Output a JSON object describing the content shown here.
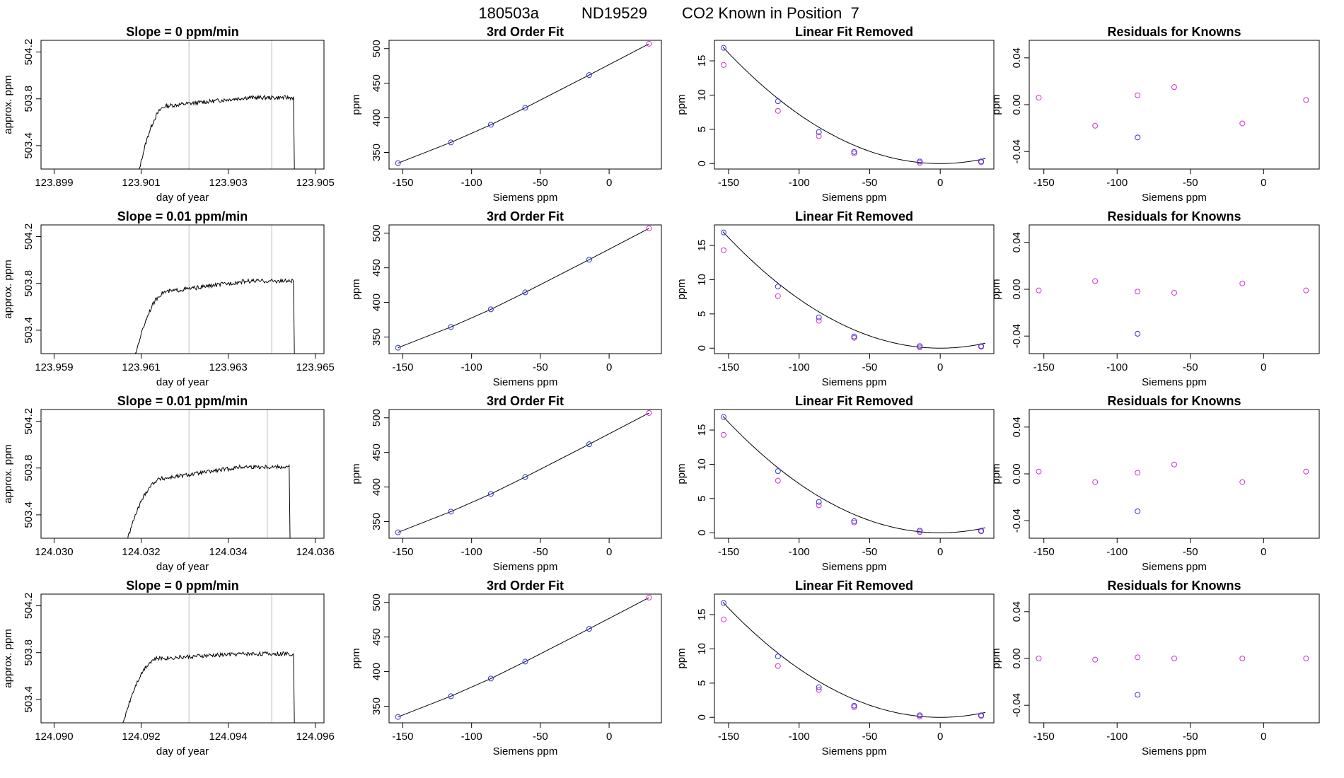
{
  "figure": {
    "run_id": "180503a",
    "tank_id": "ND19529",
    "description": "CO2 Known in Position  7"
  },
  "colors": {
    "trace": "#000000",
    "cursor_lines": "#c8c8c8",
    "fit_line": "#000000",
    "points_a": "#3333dd",
    "points_b": "#cc33cc"
  },
  "chart_data": [
    {
      "type": "line",
      "row": 1,
      "panel": "trace",
      "title": "Slope =  0  ppm/min",
      "xlabel": "day of year",
      "ylabel": "approx. ppm",
      "xlim": [
        123.8987,
        123.9052
      ],
      "ylim": [
        503.2,
        504.3
      ],
      "xticks": [
        "123.899",
        "123.901",
        "123.903",
        "123.905"
      ],
      "xtick_values": [
        123.899,
        123.901,
        123.903,
        123.905
      ],
      "yticks": [
        "503.4",
        "503.8",
        "504.2"
      ],
      "ytick_values": [
        503.4,
        503.8,
        504.2
      ],
      "vlines": [
        123.9021,
        123.904
      ],
      "trace": {
        "start": 123.90085,
        "rise_end": 123.9016,
        "end": 123.9045,
        "plateau": 503.77,
        "plateau_end": 503.81
      },
      "grid": false
    },
    {
      "type": "line",
      "row": 1,
      "panel": "fit",
      "title": "3rd Order Fit",
      "xlabel": "Siemens ppm",
      "ylabel": "ppm",
      "xlim": [
        -160,
        38
      ],
      "ylim": [
        326,
        512
      ],
      "xticks": [
        "-150",
        "-100",
        "-50",
        "0"
      ],
      "xtick_values": [
        -150,
        -100,
        -50,
        0
      ],
      "yticks": [
        "350",
        "400",
        "450",
        "500"
      ],
      "ytick_values": [
        350,
        400,
        450,
        500
      ],
      "x": [
        -153.5,
        -115,
        -86,
        -61,
        -14.5,
        29
      ],
      "y": [
        334.5,
        364.5,
        390,
        414.5,
        461.8,
        507
      ],
      "grid": false
    },
    {
      "type": "scatter",
      "row": 1,
      "panel": "linear-removed",
      "title": "Linear Fit Removed",
      "xlabel": "Siemens ppm",
      "ylabel": "ppm",
      "xlim": [
        -160,
        38
      ],
      "ylim": [
        -0.8,
        18
      ],
      "xticks": [
        "-150",
        "-100",
        "-50",
        "0"
      ],
      "xtick_values": [
        -150,
        -100,
        -50,
        0
      ],
      "yticks": [
        "0",
        "5",
        "10",
        "15"
      ],
      "ytick_values": [
        0,
        5,
        10,
        15
      ],
      "x": [
        -153.5,
        -115,
        -86,
        -61,
        -14.5,
        29
      ],
      "y_fit_points": [
        16.9,
        9.1,
        4.6,
        1.7,
        0.3,
        0.3
      ],
      "y_alt_points": [
        14.4,
        7.7,
        4.0,
        1.5,
        0.1,
        0.2
      ],
      "grid": false
    },
    {
      "type": "scatter",
      "row": 1,
      "panel": "residuals",
      "title": "Residuals for Knowns",
      "xlabel": "Siemens ppm",
      "ylabel": "ppm",
      "xlim": [
        -160,
        38
      ],
      "ylim": [
        -0.055,
        0.055
      ],
      "xticks": [
        "-150",
        "-100",
        "-50",
        "0"
      ],
      "xtick_values": [
        -150,
        -100,
        -50,
        0
      ],
      "yticks": [
        "-0.04",
        "0.00",
        "0.04"
      ],
      "ytick_values": [
        -0.04,
        0.0,
        0.04
      ],
      "x": [
        -153.5,
        -115,
        -86,
        -61,
        -14.5,
        29
      ],
      "y": [
        0.006,
        -0.018,
        0.008,
        0.015,
        -0.016,
        0.004
      ],
      "outlier": {
        "x": -86,
        "y": -0.028
      },
      "grid": false
    },
    {
      "type": "line",
      "row": 2,
      "panel": "trace",
      "title": "Slope =  0.01  ppm/min",
      "xlabel": "day of year",
      "ylabel": "approx. ppm",
      "xlim": [
        123.9587,
        123.9652
      ],
      "ylim": [
        503.2,
        504.3
      ],
      "xticks": [
        "123.959",
        "123.961",
        "123.963",
        "123.965"
      ],
      "xtick_values": [
        123.959,
        123.961,
        123.963,
        123.965
      ],
      "yticks": [
        "503.4",
        "503.8",
        "504.2"
      ],
      "ytick_values": [
        503.4,
        503.8,
        504.2
      ],
      "vlines": [
        123.9621,
        123.964
      ],
      "trace": {
        "start": 123.96075,
        "rise_end": 123.9616,
        "end": 123.9645,
        "plateau": 503.76,
        "plateau_end": 503.82
      },
      "grid": false
    },
    {
      "type": "line",
      "row": 2,
      "panel": "fit",
      "title": "3rd Order Fit",
      "xlabel": "Siemens ppm",
      "ylabel": "ppm",
      "xlim": [
        -160,
        38
      ],
      "ylim": [
        326,
        512
      ],
      "xticks": [
        "-150",
        "-100",
        "-50",
        "0"
      ],
      "xtick_values": [
        -150,
        -100,
        -50,
        0
      ],
      "yticks": [
        "350",
        "400",
        "450",
        "500"
      ],
      "ytick_values": [
        350,
        400,
        450,
        500
      ],
      "x": [
        -153.5,
        -115,
        -86,
        -61,
        -14.5,
        29
      ],
      "y": [
        334.5,
        364.5,
        390,
        414.5,
        461.8,
        507
      ],
      "grid": false
    },
    {
      "type": "scatter",
      "row": 2,
      "panel": "linear-removed",
      "title": "Linear Fit Removed",
      "xlabel": "Siemens ppm",
      "ylabel": "ppm",
      "xlim": [
        -160,
        38
      ],
      "ylim": [
        -0.8,
        18
      ],
      "xticks": [
        "-150",
        "-100",
        "-50",
        "0"
      ],
      "xtick_values": [
        -150,
        -100,
        -50,
        0
      ],
      "yticks": [
        "0",
        "5",
        "10",
        "15"
      ],
      "ytick_values": [
        0,
        5,
        10,
        15
      ],
      "x": [
        -153.5,
        -115,
        -86,
        -61,
        -14.5,
        29
      ],
      "y_fit_points": [
        16.9,
        9.0,
        4.5,
        1.7,
        0.3,
        0.3
      ],
      "y_alt_points": [
        14.3,
        7.6,
        4.0,
        1.5,
        0.1,
        0.2
      ],
      "grid": false
    },
    {
      "type": "scatter",
      "row": 2,
      "panel": "residuals",
      "title": "Residuals for Knowns",
      "xlabel": "Siemens ppm",
      "ylabel": "ppm",
      "xlim": [
        -160,
        38
      ],
      "ylim": [
        -0.055,
        0.055
      ],
      "xticks": [
        "-150",
        "-100",
        "-50",
        "0"
      ],
      "xtick_values": [
        -150,
        -100,
        -50,
        0
      ],
      "yticks": [
        "-0.04",
        "0.00",
        "0.04"
      ],
      "ytick_values": [
        -0.04,
        0.0,
        0.04
      ],
      "x": [
        -153.5,
        -115,
        -86,
        -61,
        -14.5,
        29
      ],
      "y": [
        -0.001,
        0.007,
        -0.002,
        -0.003,
        0.005,
        -0.001
      ],
      "outlier": {
        "x": -86,
        "y": -0.038
      },
      "grid": false
    },
    {
      "type": "line",
      "row": 3,
      "panel": "trace",
      "title": "Slope =  0.01  ppm/min",
      "xlabel": "day of year",
      "ylabel": "approx. ppm",
      "xlim": [
        124.0297,
        124.0362
      ],
      "ylim": [
        503.2,
        504.3
      ],
      "xticks": [
        "124.030",
        "124.032",
        "124.034",
        "124.036"
      ],
      "xtick_values": [
        124.03,
        124.032,
        124.034,
        124.036
      ],
      "yticks": [
        "503.4",
        "503.8",
        "504.2"
      ],
      "ytick_values": [
        503.4,
        503.8,
        504.2
      ],
      "vlines": [
        124.0331,
        124.0349
      ],
      "trace": {
        "start": 124.03155,
        "rise_end": 124.0325,
        "end": 124.0354,
        "plateau": 503.74,
        "plateau_end": 503.81
      },
      "grid": false
    },
    {
      "type": "line",
      "row": 3,
      "panel": "fit",
      "title": "3rd Order Fit",
      "xlabel": "Siemens ppm",
      "ylabel": "ppm",
      "xlim": [
        -160,
        38
      ],
      "ylim": [
        326,
        512
      ],
      "xticks": [
        "-150",
        "-100",
        "-50",
        "0"
      ],
      "xtick_values": [
        -150,
        -100,
        -50,
        0
      ],
      "yticks": [
        "350",
        "400",
        "450",
        "500"
      ],
      "ytick_values": [
        350,
        400,
        450,
        500
      ],
      "x": [
        -153.5,
        -115,
        -86,
        -61,
        -14.5,
        29
      ],
      "y": [
        334.5,
        364.5,
        390,
        414.5,
        461.8,
        507
      ],
      "grid": false
    },
    {
      "type": "scatter",
      "row": 3,
      "panel": "linear-removed",
      "title": "Linear Fit Removed",
      "xlabel": "Siemens ppm",
      "ylabel": "ppm",
      "xlim": [
        -160,
        38
      ],
      "ylim": [
        -0.8,
        18
      ],
      "xticks": [
        "-150",
        "-100",
        "-50",
        "0"
      ],
      "xtick_values": [
        -150,
        -100,
        -50,
        0
      ],
      "yticks": [
        "0",
        "5",
        "10",
        "15"
      ],
      "ytick_values": [
        0,
        5,
        10,
        15
      ],
      "x": [
        -153.5,
        -115,
        -86,
        -61,
        -14.5,
        29
      ],
      "y_fit_points": [
        16.9,
        9.0,
        4.5,
        1.7,
        0.3,
        0.3
      ],
      "y_alt_points": [
        14.3,
        7.6,
        4.0,
        1.5,
        0.1,
        0.2
      ],
      "grid": false
    },
    {
      "type": "scatter",
      "row": 3,
      "panel": "residuals",
      "title": "Residuals for Knowns",
      "xlabel": "Siemens ppm",
      "ylabel": "ppm",
      "xlim": [
        -160,
        38
      ],
      "ylim": [
        -0.055,
        0.055
      ],
      "xticks": [
        "-150",
        "-100",
        "-50",
        "0"
      ],
      "xtick_values": [
        -150,
        -100,
        -50,
        0
      ],
      "yticks": [
        "-0.04",
        "0.00",
        "0.04"
      ],
      "ytick_values": [
        -0.04,
        0.0,
        0.04
      ],
      "x": [
        -153.5,
        -115,
        -86,
        -61,
        -14.5,
        29
      ],
      "y": [
        0.002,
        -0.007,
        0.001,
        0.008,
        -0.007,
        0.002
      ],
      "outlier": {
        "x": -86,
        "y": -0.032
      },
      "grid": false
    },
    {
      "type": "line",
      "row": 4,
      "panel": "trace",
      "title": "Slope =  0  ppm/min",
      "xlabel": "day of year",
      "ylabel": "approx. ppm",
      "xlim": [
        124.0897,
        124.0962
      ],
      "ylim": [
        503.2,
        504.3
      ],
      "xticks": [
        "124.090",
        "124.092",
        "124.094",
        "124.096"
      ],
      "xtick_values": [
        124.09,
        124.092,
        124.094,
        124.096
      ],
      "yticks": [
        "503.4",
        "503.8",
        "504.2"
      ],
      "ytick_values": [
        503.4,
        503.8,
        504.2
      ],
      "vlines": [
        124.0931,
        124.095
      ],
      "trace": {
        "start": 124.09145,
        "rise_end": 124.0924,
        "end": 124.0955,
        "plateau": 503.78,
        "plateau_end": 503.79
      },
      "grid": false
    },
    {
      "type": "line",
      "row": 4,
      "panel": "fit",
      "title": "3rd Order Fit",
      "xlabel": "Siemens ppm",
      "ylabel": "ppm",
      "xlim": [
        -160,
        38
      ],
      "ylim": [
        326,
        512
      ],
      "xticks": [
        "-150",
        "-100",
        "-50",
        "0"
      ],
      "xtick_values": [
        -150,
        -100,
        -50,
        0
      ],
      "yticks": [
        "350",
        "400",
        "450",
        "500"
      ],
      "ytick_values": [
        350,
        400,
        450,
        500
      ],
      "x": [
        -153.5,
        -115,
        -86,
        -61,
        -14.5,
        29
      ],
      "y": [
        334.5,
        364.5,
        390,
        414.5,
        461.8,
        507
      ],
      "grid": false
    },
    {
      "type": "scatter",
      "row": 4,
      "panel": "linear-removed",
      "title": "Linear Fit Removed",
      "xlabel": "Siemens ppm",
      "ylabel": "ppm",
      "xlim": [
        -160,
        38
      ],
      "ylim": [
        -0.8,
        18
      ],
      "xticks": [
        "-150",
        "-100",
        "-50",
        "0"
      ],
      "xtick_values": [
        -150,
        -100,
        -50,
        0
      ],
      "yticks": [
        "0",
        "5",
        "10",
        "15"
      ],
      "ytick_values": [
        0,
        5,
        10,
        15
      ],
      "x": [
        -153.5,
        -115,
        -86,
        -61,
        -14.5,
        29
      ],
      "y_fit_points": [
        16.7,
        8.9,
        4.4,
        1.7,
        0.3,
        0.3
      ],
      "y_alt_points": [
        14.3,
        7.5,
        4.0,
        1.5,
        0.1,
        0.2
      ],
      "grid": false
    },
    {
      "type": "scatter",
      "row": 4,
      "panel": "residuals",
      "title": "Residuals for Knowns",
      "xlabel": "Siemens ppm",
      "ylabel": "ppm",
      "xlim": [
        -160,
        38
      ],
      "ylim": [
        -0.055,
        0.055
      ],
      "xticks": [
        "-150",
        "-100",
        "-50",
        "0"
      ],
      "xtick_values": [
        -150,
        -100,
        -50,
        0
      ],
      "yticks": [
        "-0.04",
        "0.00",
        "0.04"
      ],
      "ytick_values": [
        -0.04,
        0.0,
        0.04
      ],
      "x": [
        -153.5,
        -115,
        -86,
        -61,
        -14.5,
        29
      ],
      "y": [
        0.0,
        -0.001,
        0.001,
        0.0,
        0.0,
        0.0
      ],
      "outlier": {
        "x": -86,
        "y": -0.031
      },
      "grid": false
    }
  ]
}
